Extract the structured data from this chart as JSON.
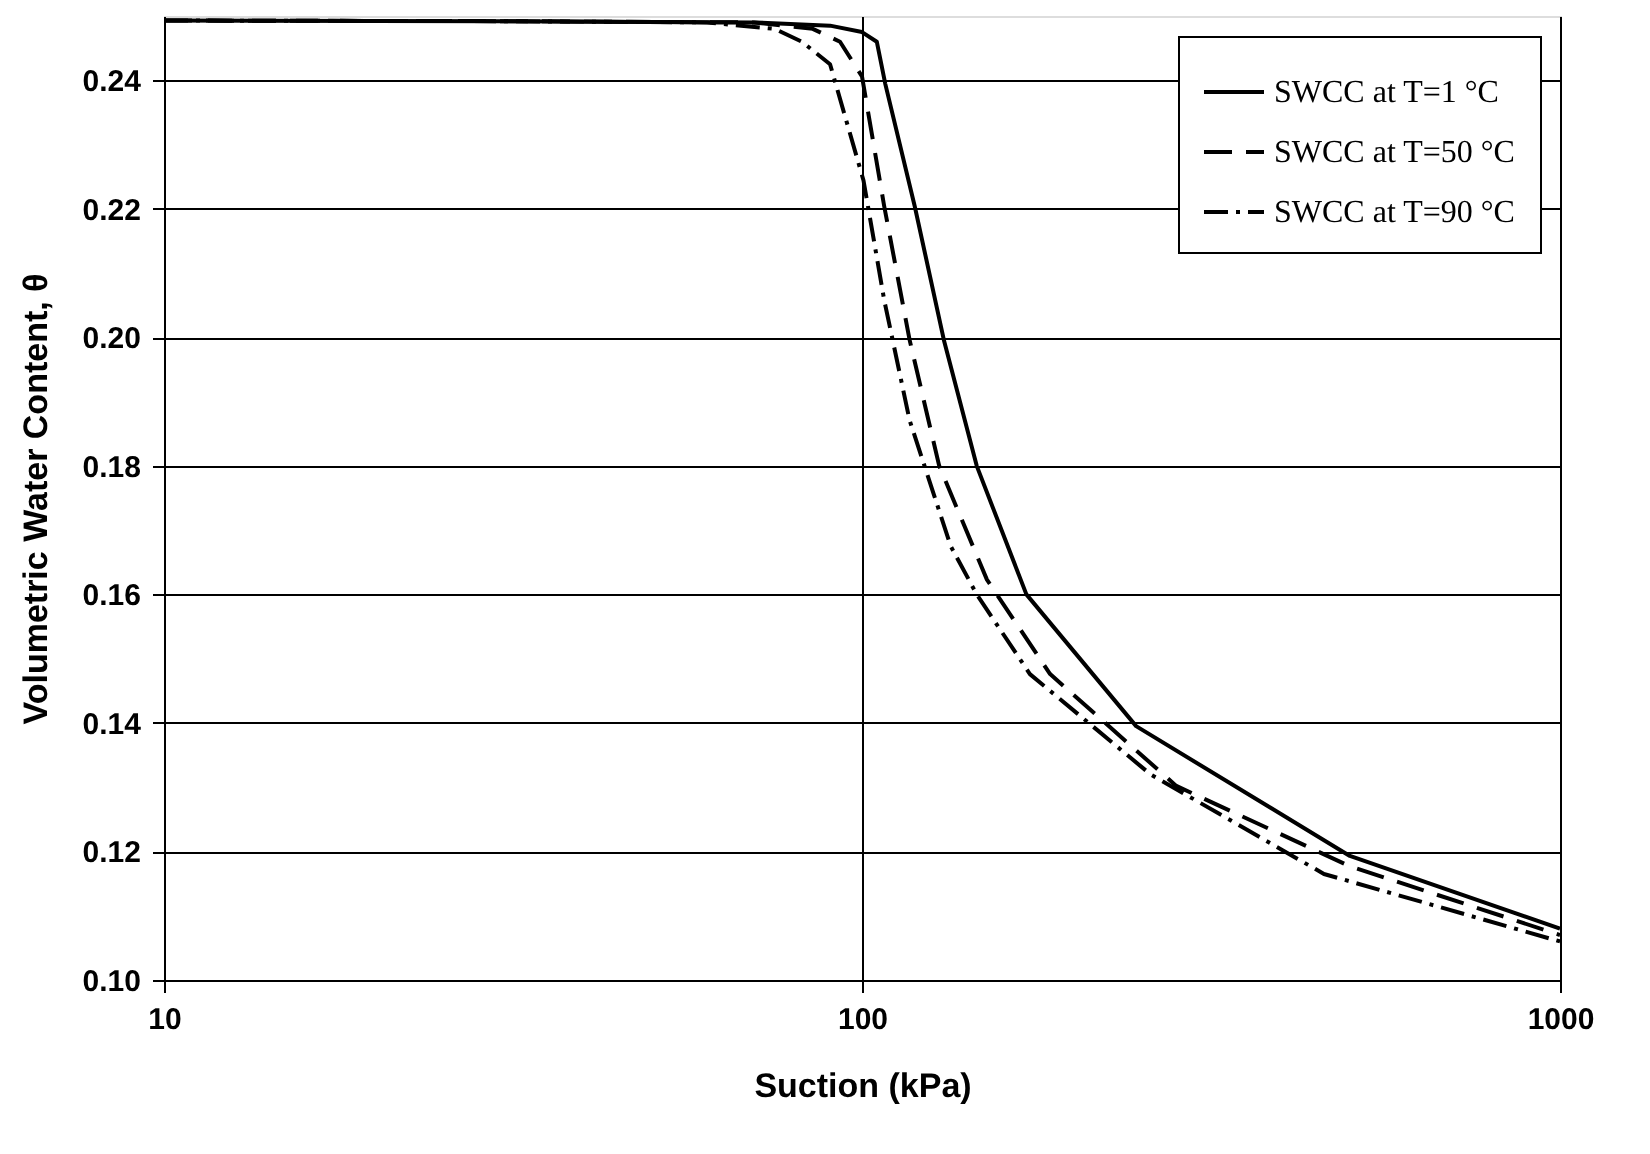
{
  "chart_data": {
    "type": "line",
    "xlabel": "Suction (kPa)",
    "ylabel": "Volumetric Water Content, θ",
    "log": "x",
    "xlim": [
      10,
      1000
    ],
    "xticks": [
      10,
      100,
      1000
    ],
    "ylim": [
      0.1,
      0.25
    ],
    "yticks": [
      {
        "value": 0.1,
        "label": "0.10"
      },
      0.12,
      0.14,
      0.16,
      0.18,
      {
        "value": 0.2,
        "label": "0.20"
      },
      0.22,
      0.24
    ],
    "grid": true,
    "legend": "top right",
    "marker": "none",
    "series": [
      {
        "name": "SWCC at T=1 °C",
        "color": "#000000",
        "line_style": "solid",
        "x": [
          10,
          30,
          70,
          90,
          100,
          105,
          108,
          119,
          131,
          146,
          172,
          247,
          500,
          1000
        ],
        "values": [
          0.2493,
          0.2492,
          0.249,
          0.2485,
          0.2475,
          0.246,
          0.2394,
          0.2204,
          0.1996,
          0.18,
          0.16,
          0.1395,
          0.1193,
          0.108
        ]
      },
      {
        "name": "SWCC at T=50 °C",
        "color": "#000000",
        "line_style": "dashed",
        "x": [
          10,
          30,
          70,
          85,
          93,
          100,
          107.6,
          117,
          129,
          151,
          186,
          282,
          500,
          1000
        ],
        "values": [
          0.2493,
          0.2492,
          0.249,
          0.248,
          0.246,
          0.2406,
          0.2204,
          0.1996,
          0.18,
          0.1623,
          0.1476,
          0.1302,
          0.1177,
          0.107
        ]
      },
      {
        "name": "SWCC at T=90 °C",
        "color": "#000000",
        "line_style": "dashdot",
        "x": [
          10,
          30,
          60,
          75,
          82,
          90,
          100.5,
          107.6,
          117,
          134,
          146,
          174,
          259,
          459,
          1000
        ],
        "values": [
          0.2493,
          0.2492,
          0.249,
          0.248,
          0.246,
          0.2425,
          0.2244,
          0.2058,
          0.1871,
          0.1675,
          0.16,
          0.1476,
          0.132,
          0.1165,
          0.106
        ]
      }
    ]
  }
}
